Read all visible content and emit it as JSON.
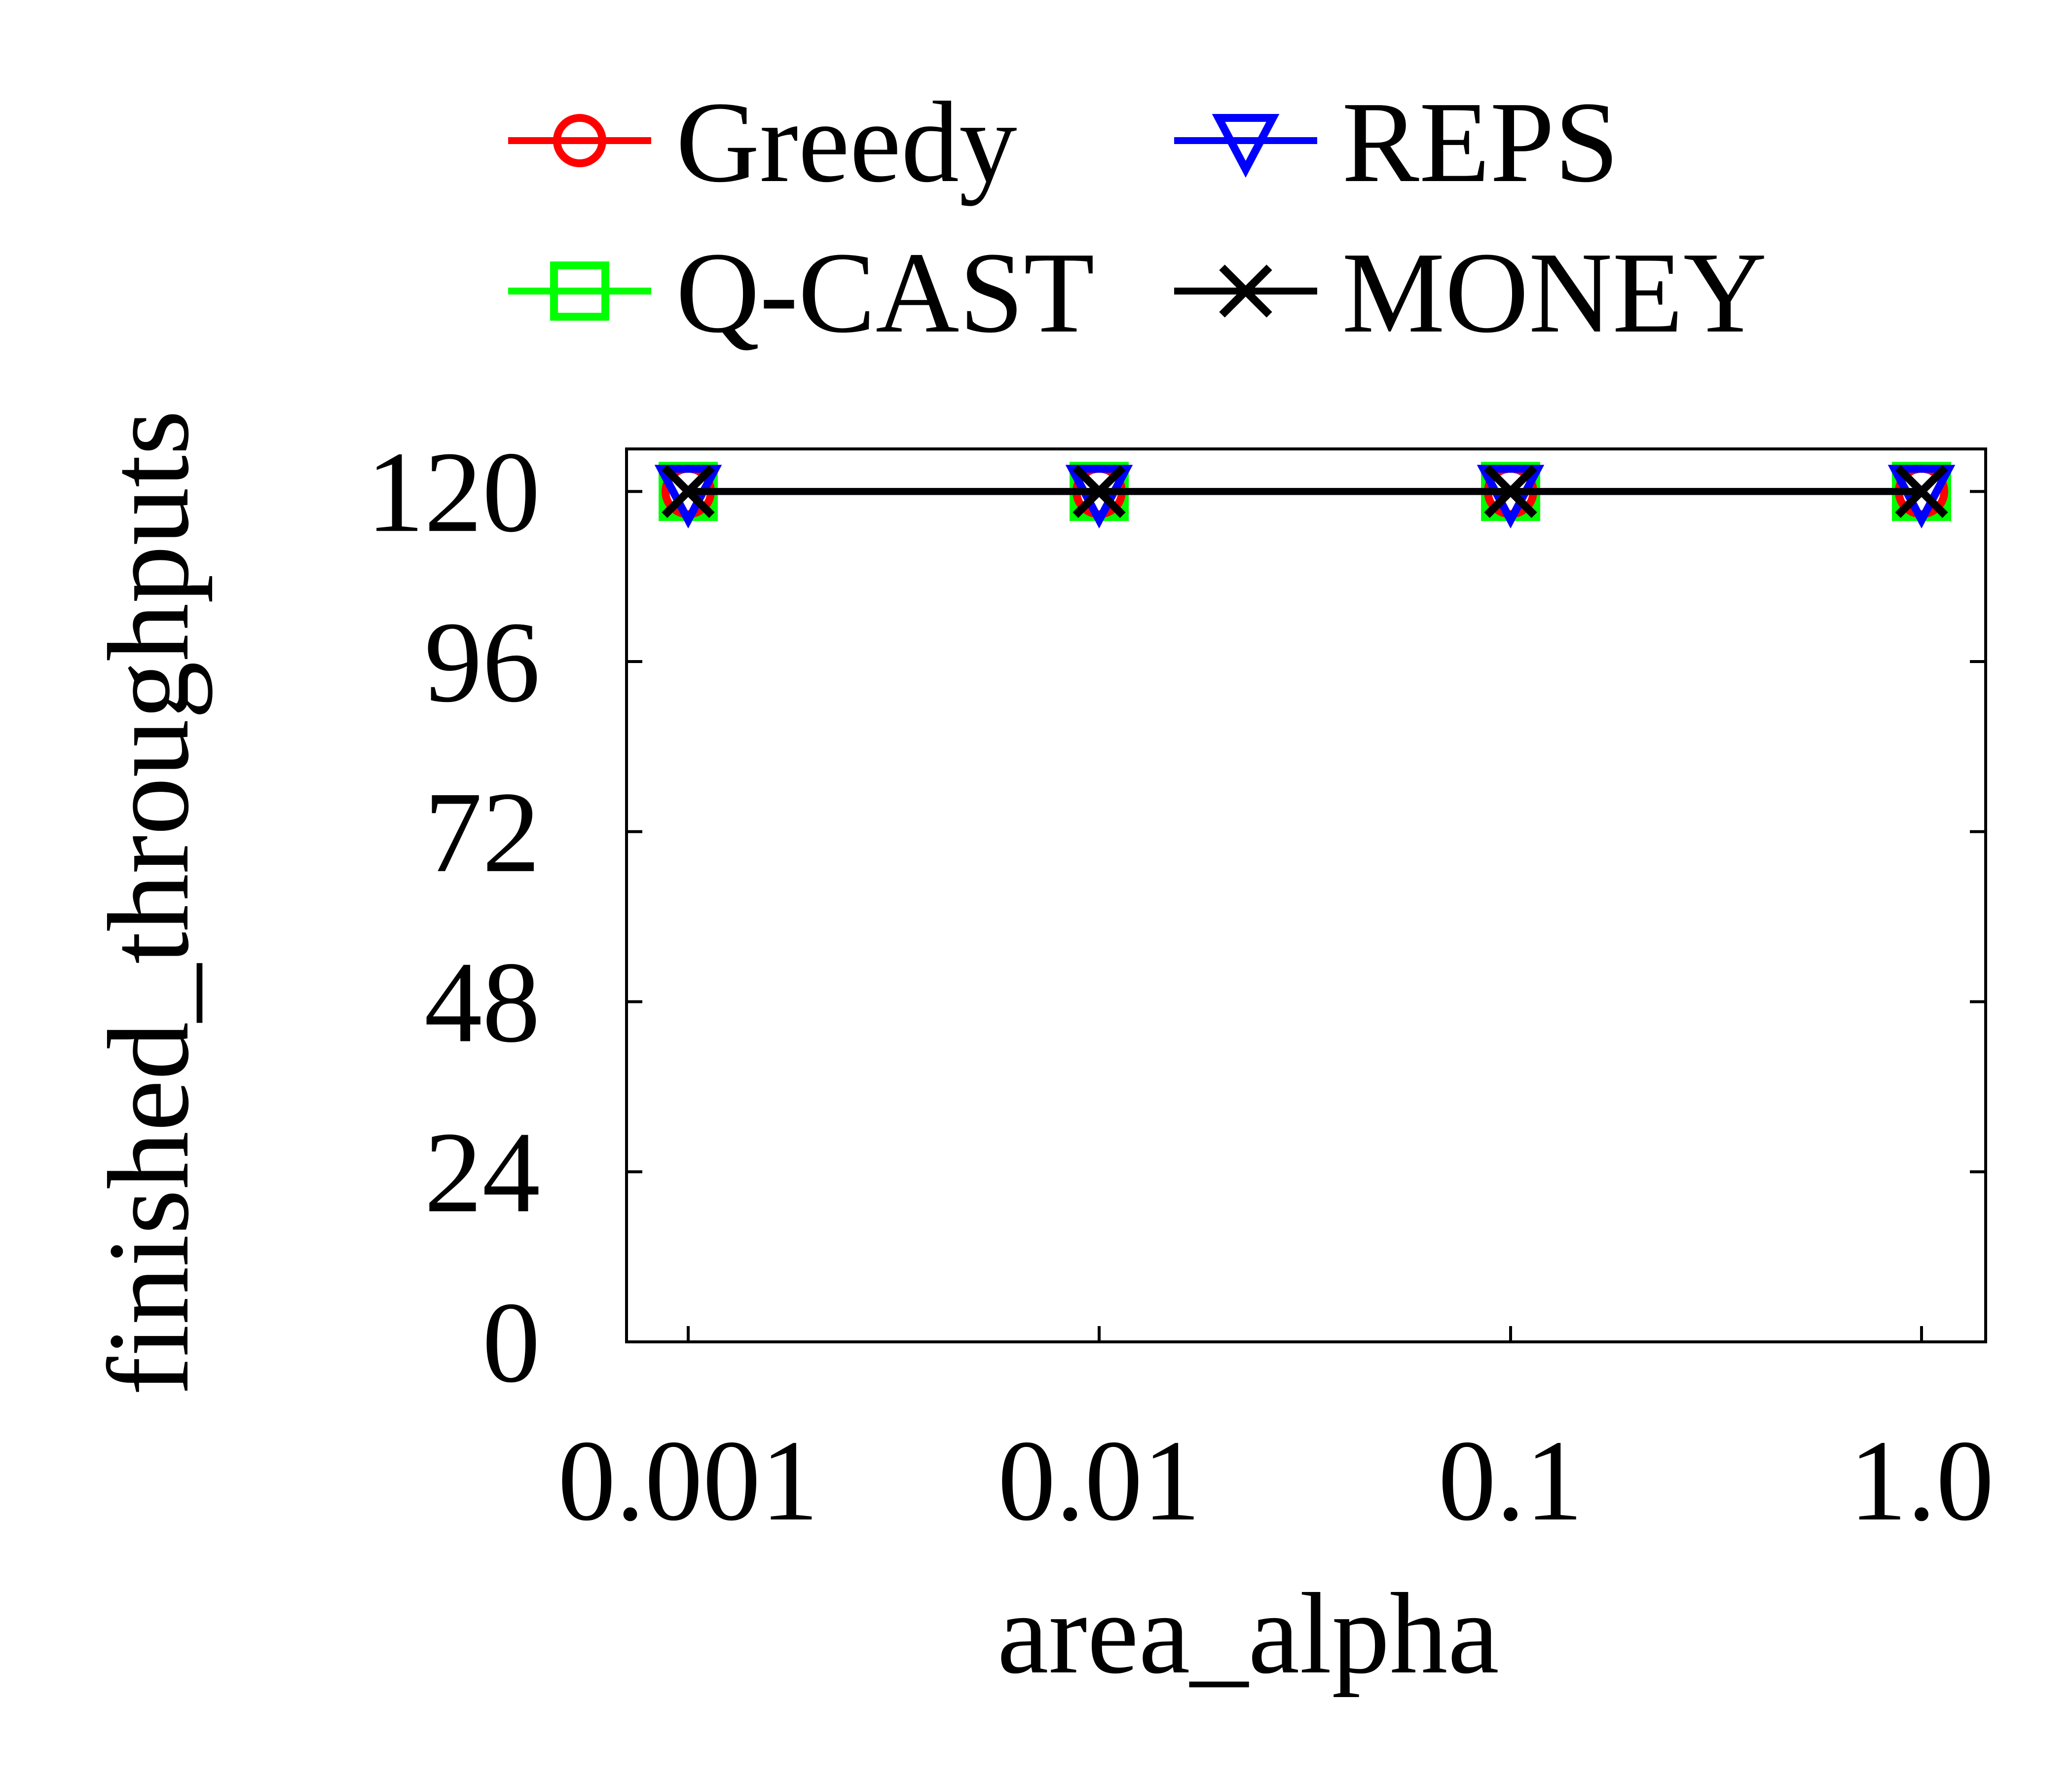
{
  "chart_data": {
    "type": "line",
    "xlabel": "area_alpha",
    "ylabel": "finished_throughputs",
    "categories": [
      "0.001",
      "0.01",
      "0.1",
      "1.0"
    ],
    "ylim": [
      0,
      126
    ],
    "yticks": [
      0,
      24,
      48,
      72,
      96,
      120
    ],
    "grid": false,
    "legend_position": "top",
    "series": [
      {
        "name": "Greedy",
        "values": [
          120,
          120,
          120,
          120
        ],
        "color": "#ff0000",
        "marker": "circle"
      },
      {
        "name": "REPS",
        "values": [
          120,
          120,
          120,
          120
        ],
        "color": "#0000ff",
        "marker": "triangle-down"
      },
      {
        "name": "Q-CAST",
        "values": [
          120,
          120,
          120,
          120
        ],
        "color": "#00ff00",
        "marker": "square"
      },
      {
        "name": "MONEY",
        "values": [
          120,
          120,
          120,
          120
        ],
        "color": "#000000",
        "marker": "x"
      }
    ]
  }
}
